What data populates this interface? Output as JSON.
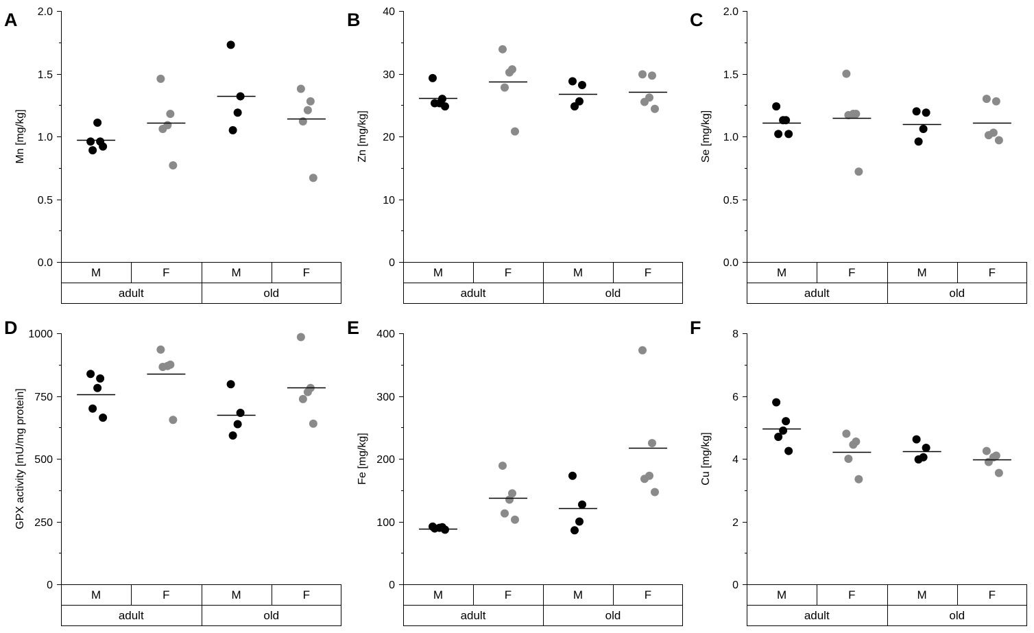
{
  "colors": {
    "M": "#000000",
    "F": "#8a8a8a"
  },
  "group_labels": {
    "sex": [
      "M",
      "F",
      "M",
      "F"
    ],
    "age": [
      "adult",
      "old"
    ]
  },
  "chart_data": [
    {
      "panel": "A",
      "type": "scatter",
      "ylabel": "Mn [mg/kg]",
      "ylim": [
        0,
        2.0
      ],
      "yticks": [
        "0.0",
        "0.5",
        "1.0",
        "1.5",
        "2.0"
      ],
      "categories": [
        "adult M",
        "adult F",
        "old M",
        "old F"
      ],
      "series": [
        {
          "points": [
            0.96,
            0.96,
            1.11,
            0.89,
            0.92
          ],
          "mean": 0.97
        },
        {
          "points": [
            1.46,
            1.18,
            1.09,
            1.06,
            0.77
          ],
          "mean": 1.11
        },
        {
          "points": [
            1.73,
            1.32,
            1.19,
            1.05
          ],
          "mean": 1.32
        },
        {
          "points": [
            1.38,
            1.28,
            1.21,
            1.12,
            0.67
          ],
          "mean": 1.14
        }
      ]
    },
    {
      "panel": "B",
      "type": "scatter",
      "ylabel": "Zn [mg/kg]",
      "ylim": [
        0,
        40
      ],
      "yticks": [
        "0",
        "10",
        "20",
        "30",
        "40"
      ],
      "categories": [
        "adult M",
        "adult F",
        "old M",
        "old F"
      ],
      "series": [
        {
          "points": [
            29.3,
            26.0,
            25.3,
            25.3,
            24.8
          ],
          "mean": 26.1
        },
        {
          "points": [
            33.9,
            30.7,
            30.2,
            27.8,
            20.8
          ],
          "mean": 28.7
        },
        {
          "points": [
            28.8,
            28.2,
            25.6,
            24.8
          ],
          "mean": 26.8
        },
        {
          "points": [
            29.9,
            29.7,
            26.2,
            25.5,
            24.4
          ],
          "mean": 27.1
        }
      ]
    },
    {
      "panel": "C",
      "type": "scatter",
      "ylabel": "Se [mg/kg]",
      "ylim": [
        0,
        2.0
      ],
      "yticks": [
        "0.0",
        "0.5",
        "1.0",
        "1.5",
        "2.0"
      ],
      "categories": [
        "adult M",
        "adult F",
        "old M",
        "old F"
      ],
      "series": [
        {
          "points": [
            1.24,
            1.13,
            1.13,
            1.02,
            1.02
          ],
          "mean": 1.11
        },
        {
          "points": [
            1.5,
            1.18,
            1.18,
            1.17,
            0.72
          ],
          "mean": 1.15
        },
        {
          "points": [
            1.2,
            1.19,
            1.06,
            0.96
          ],
          "mean": 1.1
        },
        {
          "points": [
            1.3,
            1.28,
            1.03,
            1.01,
            0.97
          ],
          "mean": 1.11
        }
      ]
    },
    {
      "panel": "D",
      "type": "scatter",
      "ylabel": "GPX activity [mU/mg protein]",
      "ylim": [
        0,
        1000
      ],
      "yticks": [
        "0",
        "250",
        "500",
        "750",
        "1000"
      ],
      "categories": [
        "adult M",
        "adult F",
        "old M",
        "old F"
      ],
      "series": [
        {
          "points": [
            838,
            820,
            782,
            700,
            664
          ],
          "mean": 758
        },
        {
          "points": [
            935,
            875,
            870,
            866,
            655
          ],
          "mean": 838
        },
        {
          "points": [
            797,
            683,
            638,
            593
          ],
          "mean": 676
        },
        {
          "points": [
            985,
            782,
            766,
            738,
            640
          ],
          "mean": 783
        }
      ]
    },
    {
      "panel": "E",
      "type": "scatter",
      "ylabel": "Fe [mg/kg]",
      "ylim": [
        0,
        400
      ],
      "yticks": [
        "0",
        "100",
        "200",
        "300",
        "400"
      ],
      "categories": [
        "adult M",
        "adult F",
        "old M",
        "old F"
      ],
      "series": [
        {
          "points": [
            92,
            91,
            90,
            89,
            87
          ],
          "mean": 89
        },
        {
          "points": [
            189,
            145,
            135,
            113,
            103
          ],
          "mean": 138
        },
        {
          "points": [
            173,
            127,
            100,
            86
          ],
          "mean": 121
        },
        {
          "points": [
            373,
            225,
            173,
            168,
            147
          ],
          "mean": 217
        }
      ]
    },
    {
      "panel": "F",
      "type": "scatter",
      "ylabel": "Cu [mg/kg]",
      "ylim": [
        0,
        8
      ],
      "yticks": [
        "0",
        "2",
        "4",
        "6",
        "8"
      ],
      "categories": [
        "adult M",
        "adult F",
        "old M",
        "old F"
      ],
      "series": [
        {
          "points": [
            5.8,
            5.2,
            4.9,
            4.7,
            4.25
          ],
          "mean": 4.97
        },
        {
          "points": [
            4.8,
            4.55,
            4.45,
            4.0,
            3.35
          ],
          "mean": 4.22
        },
        {
          "points": [
            4.62,
            4.35,
            4.05,
            3.98
          ],
          "mean": 4.25
        },
        {
          "points": [
            4.25,
            4.1,
            4.05,
            3.9,
            3.55
          ],
          "mean": 3.97
        }
      ]
    }
  ]
}
